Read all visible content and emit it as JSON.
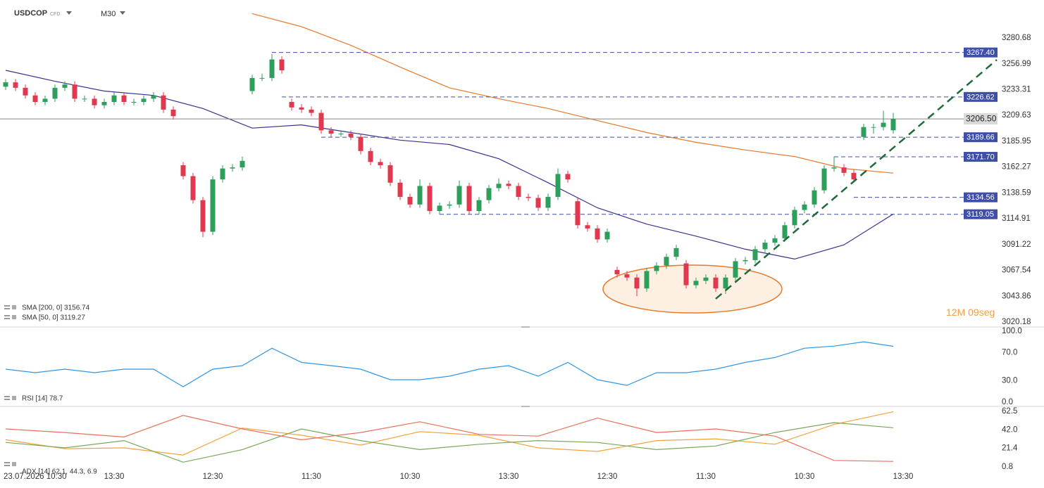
{
  "chart_data": [
    {
      "type": "candlestick",
      "title": "USDCOP",
      "subtitle": "CFD",
      "timeframe": "M30",
      "categories": [
        "23.07.2026 10:30",
        null,
        null,
        null,
        null,
        null,
        null,
        null,
        null,
        null,
        null,
        "13:30",
        null,
        null,
        null,
        null,
        null,
        null,
        null,
        null,
        null,
        "12:30",
        null,
        null,
        null,
        null,
        null,
        null,
        null,
        null,
        null,
        "11:30",
        null,
        null,
        null,
        null,
        null,
        null,
        null,
        null,
        null,
        "10:30",
        null,
        null,
        null,
        null,
        null,
        null,
        null,
        null,
        null,
        "13:30",
        null,
        null,
        null,
        null,
        null,
        null,
        null,
        null,
        null,
        "12:30",
        null,
        null,
        null,
        null,
        null,
        null,
        null,
        null,
        null,
        "11:30",
        null,
        null,
        null,
        null,
        null,
        null,
        null,
        null,
        null,
        "10:30",
        null,
        null,
        null,
        null,
        null,
        null,
        null,
        null,
        null,
        "13:30"
      ],
      "ohlc": [
        [
          3236,
          3243,
          3233,
          3240
        ],
        [
          3240,
          3243,
          3232,
          3235
        ],
        [
          3235,
          3238,
          3225,
          3228
        ],
        [
          3228,
          3231,
          3219,
          3222
        ],
        [
          3222,
          3228,
          3219,
          3225
        ],
        [
          3225,
          3238,
          3222,
          3235
        ],
        [
          3235,
          3241,
          3232,
          3238
        ],
        [
          3238,
          3241,
          3222,
          3225
        ],
        [
          3225,
          3228,
          3222,
          3225
        ],
        [
          3225,
          3228,
          3216,
          3219
        ],
        [
          3219,
          3225,
          3216,
          3222
        ],
        [
          3222,
          3231,
          3219,
          3228
        ],
        [
          3228,
          3231,
          3219,
          3222
        ],
        [
          3222,
          3225,
          3219,
          3222
        ],
        [
          3222,
          3228,
          3219,
          3225
        ],
        [
          3225,
          3231,
          3222,
          3228
        ],
        [
          3228,
          3231,
          3212,
          3215
        ],
        [
          3215,
          3218,
          3206,
          3209
        ],
        [
          3164,
          3167,
          3151,
          3154
        ],
        [
          3154,
          3157,
          3129,
          3132
        ],
        [
          3132,
          3135,
          3098,
          3103
        ],
        [
          3103,
          3154,
          3100,
          3151
        ],
        [
          3151,
          3164,
          3148,
          3161
        ],
        [
          3161,
          3165,
          3158,
          3162
        ],
        [
          3162,
          3172,
          3159,
          3168
        ],
        [
          3232,
          3247,
          3229,
          3244
        ],
        [
          3244,
          3248,
          3241,
          3244
        ],
        [
          3244,
          3266,
          3241,
          3261
        ],
        [
          3261,
          3264,
          3248,
          3251
        ],
        [
          3222,
          3225,
          3214,
          3217
        ],
        [
          3217,
          3220,
          3212,
          3215
        ],
        [
          3215,
          3218,
          3209,
          3212
        ],
        [
          3212,
          3215,
          3193,
          3196
        ],
        [
          3196,
          3199,
          3190,
          3193
        ],
        [
          3193,
          3196,
          3190,
          3193
        ],
        [
          3193,
          3196,
          3187,
          3190
        ],
        [
          3190,
          3193,
          3174,
          3177
        ],
        [
          3177,
          3180,
          3164,
          3167
        ],
        [
          3167,
          3170,
          3161,
          3164
        ],
        [
          3164,
          3167,
          3145,
          3148
        ],
        [
          3148,
          3151,
          3132,
          3135
        ],
        [
          3135,
          3138,
          3125,
          3128
        ],
        [
          3128,
          3151,
          3125,
          3145
        ],
        [
          3145,
          3148,
          3119,
          3122
        ],
        [
          3122,
          3130,
          3119,
          3127
        ],
        [
          3127,
          3131,
          3124,
          3128
        ],
        [
          3128,
          3150,
          3125,
          3145
        ],
        [
          3145,
          3148,
          3119,
          3122
        ],
        [
          3122,
          3135,
          3119,
          3132
        ],
        [
          3132,
          3146,
          3129,
          3143
        ],
        [
          3143,
          3152,
          3140,
          3147
        ],
        [
          3147,
          3150,
          3142,
          3145
        ],
        [
          3145,
          3148,
          3132,
          3135
        ],
        [
          3135,
          3138,
          3131,
          3134
        ],
        [
          3134,
          3137,
          3122,
          3125
        ],
        [
          3125,
          3138,
          3122,
          3135
        ],
        [
          3135,
          3161,
          3132,
          3156
        ],
        [
          3156,
          3159,
          3148,
          3151
        ],
        [
          3131,
          3134,
          3106,
          3109
        ],
        [
          3109,
          3112,
          3103,
          3106
        ],
        [
          3106,
          3109,
          3093,
          3096
        ],
        [
          3096,
          3106,
          3093,
          3103
        ],
        [
          3068,
          3071,
          3061,
          3064
        ],
        [
          3064,
          3067,
          3058,
          3061
        ],
        [
          3061,
          3064,
          3044,
          3051
        ],
        [
          3051,
          3070,
          3048,
          3067
        ],
        [
          3067,
          3075,
          3064,
          3072
        ],
        [
          3072,
          3083,
          3069,
          3080
        ],
        [
          3080,
          3091,
          3077,
          3088
        ],
        [
          3074,
          3077,
          3051,
          3054
        ],
        [
          3054,
          3061,
          3051,
          3058
        ],
        [
          3058,
          3064,
          3055,
          3061
        ],
        [
          3061,
          3064,
          3048,
          3051
        ],
        [
          3051,
          3064,
          3046,
          3061
        ],
        [
          3061,
          3079,
          3058,
          3076
        ],
        [
          3076,
          3080,
          3073,
          3077
        ],
        [
          3077,
          3090,
          3074,
          3087
        ],
        [
          3087,
          3096,
          3084,
          3093
        ],
        [
          3093,
          3100,
          3090,
          3097
        ],
        [
          3097,
          3112,
          3094,
          3109
        ],
        [
          3109,
          3126,
          3106,
          3123
        ],
        [
          3123,
          3131,
          3120,
          3128
        ],
        [
          3128,
          3144,
          3125,
          3141
        ],
        [
          3141,
          3164,
          3138,
          3161
        ],
        [
          3161,
          3172,
          3158,
          3162
        ],
        [
          3162,
          3165,
          3154,
          3157
        ],
        [
          3157,
          3160,
          3148,
          3151
        ],
        [
          3190,
          3202,
          3187,
          3199
        ],
        [
          3199,
          3202,
          3193,
          3199
        ],
        [
          3199,
          3214,
          3196,
          3203
        ],
        [
          3196,
          3212,
          3193,
          3206.5
        ],
        null
      ],
      "up_color": "#2e9e5b",
      "down_color": "#e0394f",
      "ylim": [
        3015.7,
        3315.5
      ],
      "yticks": [
        3020.18,
        3043.86,
        3067.54,
        3091.22,
        3114.91,
        3138.59,
        3162.27,
        3185.95,
        3209.63,
        3233.31,
        3256.99,
        3280.68
      ],
      "overlays": [
        {
          "name": "SMA [200, 0] 3156.74",
          "color": "#e8782a",
          "x": [
            25,
            30,
            35,
            40,
            45,
            50,
            55,
            60,
            65,
            70,
            75,
            80,
            85,
            90
          ],
          "values": [
            3303,
            3291,
            3274,
            3254,
            3235,
            3225,
            3216,
            3205,
            3194,
            3185,
            3178,
            3172,
            3161,
            3156.74
          ]
        },
        {
          "name": "SMA [50, 0] 3119.27",
          "color": "#3b2f8f",
          "x": [
            0,
            5,
            10,
            15,
            20,
            25,
            30,
            35,
            40,
            45,
            50,
            55,
            60,
            65,
            70,
            75,
            80,
            85,
            90
          ],
          "values": [
            3251,
            3241,
            3232,
            3228,
            3216,
            3198,
            3201,
            3194,
            3187,
            3183,
            3170,
            3148,
            3125,
            3110,
            3099,
            3087,
            3078,
            3091,
            3119.27
          ]
        }
      ],
      "level_color": "#3f4fa8",
      "levels": [
        {
          "value": 3267.4,
          "label": "3267.40",
          "from": 27
        },
        {
          "value": 3226.62,
          "label": "3226.62",
          "from": 28
        },
        {
          "value": 3189.66,
          "label": "3189.66",
          "from": 32
        },
        {
          "value": 3171.7,
          "label": "3171.70",
          "from": 84
        },
        {
          "value": 3134.56,
          "label": "3134.56",
          "from": 86
        },
        {
          "value": 3119.05,
          "label": "3119.05",
          "from": 44
        }
      ],
      "current": {
        "value": 3206.5,
        "label": "3206.50"
      },
      "trendline": {
        "color": "#1f6b3a",
        "x": [
          72,
          100.5
        ],
        "values": [
          3041.5,
          3260.7
        ]
      },
      "countdown": {
        "minutes": "12M",
        "seconds": "09seg"
      }
    },
    {
      "type": "line",
      "series": [
        {
          "name": "RSI [14] 78.7",
          "color": "#2f97e6",
          "x": [
            0,
            3,
            6,
            9,
            12,
            15,
            18,
            21,
            24,
            27,
            30,
            33,
            36,
            39,
            42,
            45,
            48,
            51,
            54,
            57,
            60,
            63,
            66,
            69,
            72,
            75,
            78,
            81,
            84,
            87,
            90
          ],
          "values": [
            46.5,
            41.6,
            46.5,
            41.6,
            46.5,
            46.5,
            21.8,
            46.5,
            51.5,
            76,
            56,
            51.5,
            46.5,
            31.7,
            31.7,
            36.6,
            46.5,
            51.5,
            36.6,
            56,
            31.7,
            23.8,
            41.6,
            41.6,
            46.5,
            56,
            63,
            76,
            79,
            85,
            78.7
          ]
        }
      ],
      "ylim": [
        -5.9,
        105.9
      ],
      "yticks": [
        {
          "value": 0,
          "label": "0.0"
        },
        {
          "value": 30,
          "label": "30.0"
        },
        {
          "value": 70,
          "label": "70.0"
        },
        {
          "value": 100,
          "label": "100.0"
        }
      ]
    },
    {
      "type": "line",
      "legend": "ADX [14] 62.1, 44.3, 6.9",
      "series": [
        {
          "color": "#f5a23c",
          "x": [
            0,
            6,
            12,
            18,
            24,
            30,
            36,
            42,
            48,
            54,
            60,
            66,
            72,
            78,
            84,
            90
          ],
          "values": [
            31,
            21,
            22,
            14,
            44,
            36,
            25,
            40,
            36,
            22,
            18,
            30,
            32,
            26,
            48,
            62.1
          ]
        },
        {
          "color": "#7aa65a",
          "x": [
            0,
            6,
            12,
            18,
            24,
            30,
            36,
            42,
            48,
            54,
            60,
            66,
            72,
            78,
            84,
            90
          ],
          "values": [
            28,
            22,
            30,
            6,
            20,
            43,
            30,
            20,
            26,
            30,
            28,
            20,
            24,
            39,
            50,
            44.3
          ]
        },
        {
          "color": "#e8705a",
          "x": [
            0,
            6,
            12,
            18,
            24,
            30,
            36,
            42,
            48,
            54,
            60,
            66,
            72,
            78,
            84,
            90
          ],
          "values": [
            43,
            39,
            34,
            58,
            43,
            31,
            39,
            51,
            37,
            35,
            55,
            39,
            43,
            35,
            8,
            6.9
          ]
        }
      ],
      "ylim": [
        -11.7,
        68
      ],
      "yticks": [
        0.8,
        21.4,
        {
          "value": 42,
          "label": "42.0"
        },
        62.5
      ]
    }
  ]
}
